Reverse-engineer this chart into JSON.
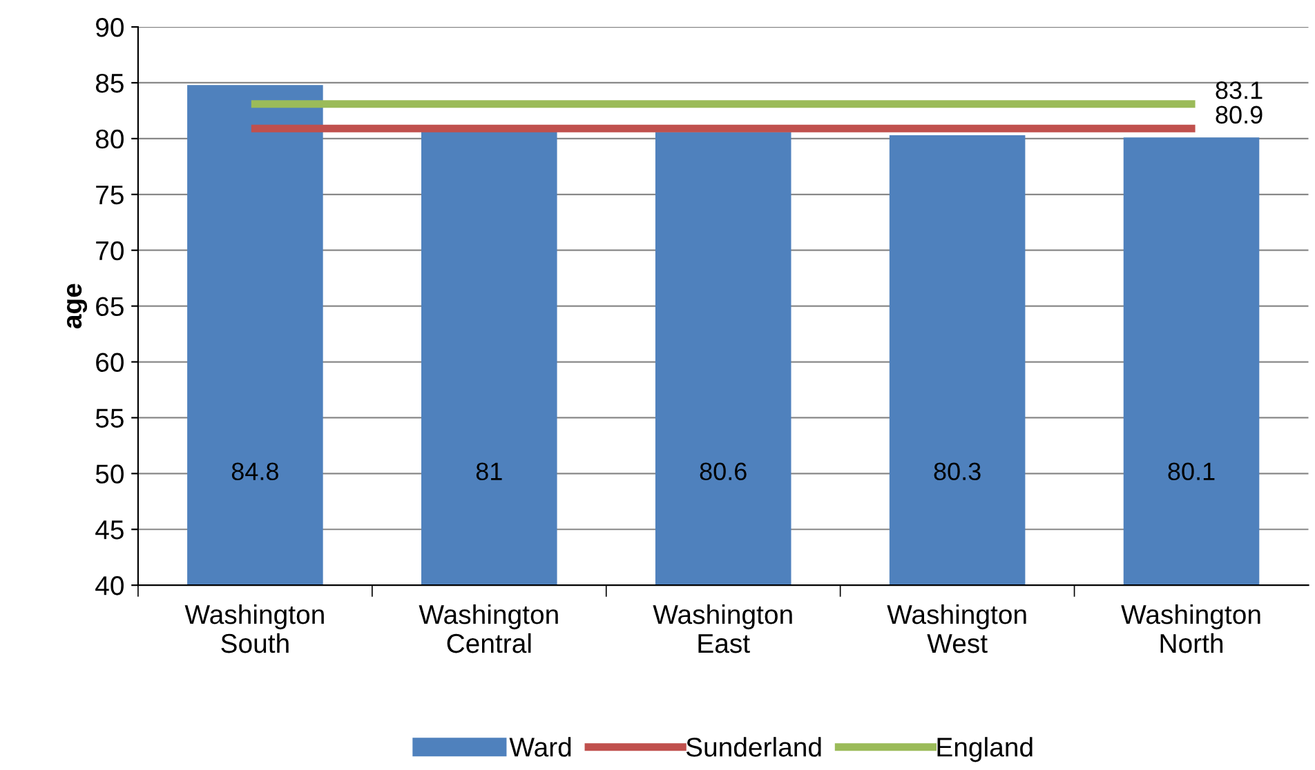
{
  "chart_data": {
    "type": "bar",
    "ylabel": "age",
    "categories": [
      "Washington\nSouth",
      "Washington\nCentral",
      "Washington\nEast",
      "Washington\nWest",
      "Washington\nNorth"
    ],
    "series": [
      {
        "name": "Ward",
        "color": "#4f81bd",
        "values": [
          84.8,
          81,
          80.6,
          80.3,
          80.1
        ],
        "data_labels": true
      },
      {
        "name": "Sunderland",
        "type": "line",
        "color": "#c0504d",
        "values": [
          80.9,
          80.9,
          80.9,
          80.9,
          80.9
        ],
        "value_labels": [
          null,
          null,
          null,
          null,
          "80.9"
        ]
      },
      {
        "name": "England",
        "type": "line",
        "color": "#9bbb59",
        "values": [
          83.1,
          83.1,
          83.1,
          83.1,
          83.1
        ],
        "value_labels": [
          null,
          null,
          null,
          null,
          "83.1"
        ]
      }
    ],
    "ylim": [
      40,
      90
    ],
    "yticks": [
      40,
      45,
      50,
      55,
      60,
      65,
      70,
      75,
      80,
      85,
      90
    ],
    "grid": "y",
    "legend": "bottom",
    "marker": "none",
    "line_style": "solid"
  }
}
